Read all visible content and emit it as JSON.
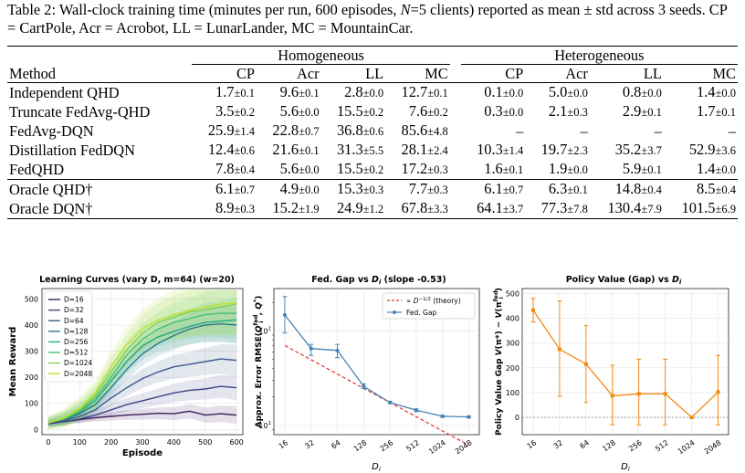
{
  "caption": {
    "text": "Table 2: Wall-clock training time (minutes per run, 600 episodes, N=5 clients) reported as mean ± std across 3 seeds. CP = CartPole, Acr = Acrobot, LL = LunarLander, MC = MountainCar."
  },
  "table": {
    "group_headers": [
      "Homogeneous",
      "Heterogeneous"
    ],
    "columns": [
      "Method",
      "CP",
      "Acr",
      "LL",
      "MC",
      "CP",
      "Acr",
      "LL",
      "MC"
    ],
    "rows": [
      {
        "method": "Independent QHD",
        "cells": [
          [
            "1.7",
            "±0.1"
          ],
          [
            "9.6",
            "±0.1"
          ],
          [
            "2.8",
            "±0.0"
          ],
          [
            "12.7",
            "±0.1"
          ],
          [
            "0.1",
            "±0.0"
          ],
          [
            "5.0",
            "±0.0"
          ],
          [
            "0.8",
            "±0.0"
          ],
          [
            "1.4",
            "±0.0"
          ]
        ]
      },
      {
        "method": "Truncate FedAvg-QHD",
        "cells": [
          [
            "3.5",
            "±0.2"
          ],
          [
            "5.6",
            "±0.0"
          ],
          [
            "15.5",
            "±0.2"
          ],
          [
            "7.6",
            "±0.2"
          ],
          [
            "0.3",
            "±0.0"
          ],
          [
            "2.1",
            "±0.3"
          ],
          [
            "2.9",
            "±0.1"
          ],
          [
            "1.7",
            "±0.1"
          ]
        ]
      },
      {
        "method": "FedAvg-DQN",
        "cells": [
          [
            "25.9",
            "±1.4"
          ],
          [
            "22.8",
            "±0.7"
          ],
          [
            "36.8",
            "±0.6"
          ],
          [
            "85.6",
            "±4.8"
          ],
          [
            "–",
            ""
          ],
          [
            "–",
            ""
          ],
          [
            "–",
            ""
          ],
          [
            "–",
            ""
          ]
        ]
      },
      {
        "method": "Distillation FedDQN",
        "cells": [
          [
            "12.4",
            "±0.6"
          ],
          [
            "21.6",
            "±0.1"
          ],
          [
            "31.3",
            "±5.5"
          ],
          [
            "28.1",
            "±2.4"
          ],
          [
            "10.3",
            "±1.4"
          ],
          [
            "19.7",
            "±2.3"
          ],
          [
            "35.2",
            "±3.7"
          ],
          [
            "52.9",
            "±3.6"
          ]
        ]
      },
      {
        "method": "FedQHD",
        "cells": [
          [
            "7.8",
            "±0.4"
          ],
          [
            "5.6",
            "±0.0"
          ],
          [
            "15.5",
            "±0.2"
          ],
          [
            "17.2",
            "±0.3"
          ],
          [
            "1.6",
            "±0.1"
          ],
          [
            "1.9",
            "±0.0"
          ],
          [
            "5.9",
            "±0.1"
          ],
          [
            "1.4",
            "±0.0"
          ]
        ]
      }
    ],
    "oracle_rows": [
      {
        "method": "Oracle QHD†",
        "cells": [
          [
            "6.1",
            "±0.7"
          ],
          [
            "4.9",
            "±0.0"
          ],
          [
            "15.3",
            "±0.3"
          ],
          [
            "7.7",
            "±0.3"
          ],
          [
            "6.1",
            "±0.7"
          ],
          [
            "6.3",
            "±0.1"
          ],
          [
            "14.8",
            "±0.4"
          ],
          [
            "8.5",
            "±0.4"
          ]
        ]
      },
      {
        "method": "Oracle DQN†",
        "cells": [
          [
            "8.9",
            "±0.3"
          ],
          [
            "15.2",
            "±1.9"
          ],
          [
            "24.9",
            "±1.2"
          ],
          [
            "67.8",
            "±3.3"
          ],
          [
            "64.1",
            "±3.7"
          ],
          [
            "77.3",
            "±7.8"
          ],
          [
            "130.4",
            "±7.9"
          ],
          [
            "101.5",
            "±6.9"
          ]
        ]
      }
    ]
  },
  "chart_data": [
    {
      "type": "line",
      "title": "Learning Curves (vary D, m=64)  (w=20)",
      "xlabel": "Episode",
      "ylabel": "Mean Reward",
      "xlim": [
        -20,
        620
      ],
      "ylim": [
        -20,
        540
      ],
      "xticks": [
        0,
        100,
        200,
        300,
        400,
        500,
        600
      ],
      "yticks": [
        0,
        100,
        200,
        300,
        400,
        500
      ],
      "grid": true,
      "legend": "upper-left",
      "x": [
        0,
        50,
        100,
        150,
        200,
        250,
        300,
        350,
        400,
        450,
        500,
        550,
        600
      ],
      "series": [
        {
          "name": "D=16",
          "color": "#3d1d5c",
          "values": [
            22,
            30,
            38,
            45,
            50,
            55,
            58,
            62,
            60,
            70,
            55,
            60,
            55
          ]
        },
        {
          "name": "D=32",
          "color": "#414487",
          "values": [
            22,
            30,
            40,
            55,
            75,
            95,
            110,
            125,
            140,
            150,
            155,
            165,
            160
          ]
        },
        {
          "name": "D=64",
          "color": "#3b5a8c",
          "values": [
            25,
            35,
            50,
            75,
            120,
            160,
            195,
            220,
            240,
            250,
            260,
            270,
            265
          ]
        },
        {
          "name": "D=128",
          "color": "#2a788e",
          "values": [
            25,
            38,
            60,
            95,
            160,
            230,
            290,
            330,
            360,
            385,
            400,
            405,
            400
          ]
        },
        {
          "name": "D=256",
          "color": "#22a884",
          "values": [
            25,
            40,
            65,
            110,
            185,
            260,
            320,
            355,
            375,
            395,
            410,
            415,
            420
          ]
        },
        {
          "name": "D=512",
          "color": "#44bf70",
          "values": [
            25,
            40,
            70,
            120,
            200,
            285,
            345,
            385,
            410,
            425,
            440,
            445,
            445
          ]
        },
        {
          "name": "D=1024",
          "color": "#7ad151",
          "values": [
            25,
            42,
            75,
            130,
            220,
            305,
            370,
            410,
            430,
            450,
            460,
            470,
            480
          ]
        },
        {
          "name": "D=2048",
          "color": "#bddf26",
          "values": [
            25,
            45,
            80,
            140,
            240,
            325,
            385,
            420,
            440,
            455,
            470,
            480,
            485
          ]
        }
      ]
    },
    {
      "type": "line",
      "title": "Fed. Gap vs D_i  (slope -0.53)",
      "xlabel": "D_i",
      "ylabel": "Approx. Error RMSE(Q_i^fed, Q*)",
      "xscale": "log2",
      "yscale": "log",
      "ylim": [
        8,
        280
      ],
      "grid": true,
      "legend": "upper-right",
      "x": [
        16,
        32,
        64,
        128,
        256,
        512,
        1024,
        2048
      ],
      "series": [
        {
          "name": "Fed. Gap",
          "color": "#4682b4",
          "values": [
            147,
            65,
            62,
            26,
            17.5,
            14.5,
            12.5,
            12.3
          ],
          "error": [
            [
              95,
              230
            ],
            [
              55,
              72
            ],
            [
              52,
              72
            ],
            [
              24.5,
              27.5
            ],
            [
              17,
              18
            ],
            [
              14,
              15
            ],
            [
              12.2,
              12.8
            ],
            [
              12.0,
              12.6
            ]
          ]
        },
        {
          "name": "∝ D^-1/2 (theory)",
          "color": "#e0332f",
          "style": "dashed",
          "values": [
            70,
            49.5,
            35,
            24.7,
            17.5,
            12.4,
            8.75,
            6.2
          ]
        }
      ]
    },
    {
      "type": "line",
      "title": "Policy Value (Gap) vs D_i",
      "xlabel": "D_i",
      "ylabel": "Policy Value Gap V(π*) − V(π_i^fed)",
      "ylim": [
        -70,
        520
      ],
      "yticks": [
        0,
        100,
        200,
        300,
        400,
        500
      ],
      "grid": true,
      "x": [
        16,
        32,
        64,
        128,
        256,
        512,
        1024,
        2048
      ],
      "series": [
        {
          "name": "",
          "color": "#f28a0f",
          "values": [
            432,
            275,
            215,
            87,
            95,
            95,
            0,
            102
          ],
          "error": [
            [
              385,
              480
            ],
            [
              85,
              470
            ],
            [
              60,
              370
            ],
            [
              -30,
              210
            ],
            [
              -30,
              235
            ],
            [
              -30,
              235
            ],
            [
              -5,
              5
            ],
            [
              -30,
              250
            ]
          ]
        }
      ]
    }
  ],
  "figure_labels": {
    "fig1": {
      "title": "Learning Curves (vary D, m=64)  (w=20)",
      "xlabel": "Episode",
      "ylabel": "Mean Reward"
    },
    "fig2": {
      "title": "Fed. Gap vs D_i  (slope -0.53)",
      "xlabel": "D_i",
      "legend_theory": "∝ D^-1/2 (theory)",
      "legend_gap": "Fed. Gap"
    },
    "fig3": {
      "title": "Policy Value (Gap) vs D_i",
      "xlabel": "D_i"
    }
  }
}
